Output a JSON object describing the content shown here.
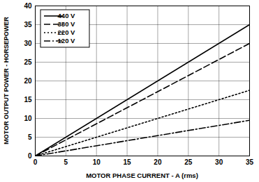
{
  "chart_data": {
    "type": "line",
    "xlabel": "MOTOR PHASE CURRENT - A (rms)",
    "ylabel": "MOTOR OUTPUT POWER - HORSEPOWER",
    "x": [
      0,
      35
    ],
    "series": [
      {
        "name": "440 V",
        "color": "#000000",
        "line_style": "solid",
        "values": [
          0,
          35
        ]
      },
      {
        "name": "380 V",
        "color": "#000000",
        "line_style": "dashed",
        "values": [
          0,
          30
        ]
      },
      {
        "name": "220 V",
        "color": "#000000",
        "line_style": "dotted",
        "values": [
          0,
          17.5
        ]
      },
      {
        "name": "120 V",
        "color": "#000000",
        "line_style": "dashdot",
        "values": [
          0,
          9.5
        ]
      }
    ],
    "xlim": [
      0,
      35
    ],
    "xticks": [
      0,
      5,
      10,
      15,
      20,
      25,
      30,
      35
    ],
    "ylim": [
      0,
      40
    ],
    "yticks": [
      0,
      5,
      10,
      15,
      20,
      25,
      30,
      35,
      40
    ],
    "grid": true,
    "legend": "upper left"
  }
}
